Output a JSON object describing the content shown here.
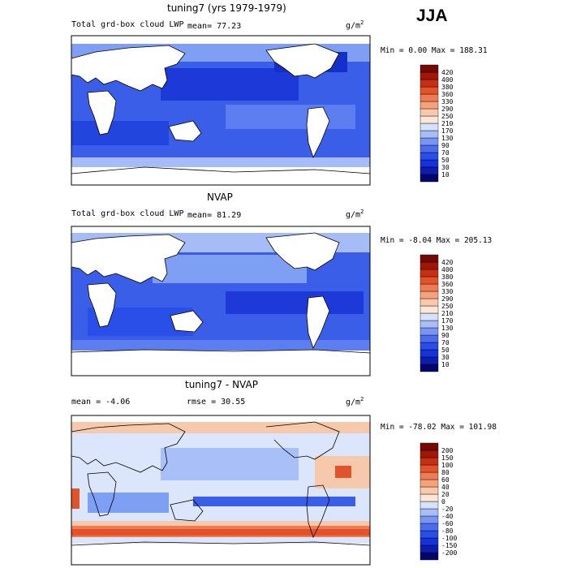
{
  "season": "JJA",
  "panels": [
    {
      "title": "tuning7 (yrs 1979-1979)",
      "field": "Total grd-box cloud LWP",
      "stat_left": "mean=  77.23",
      "units": "g/m",
      "units_exp": "2",
      "range": "Min =    0.00 Max = 188.31"
    },
    {
      "title": "NVAP",
      "field": "Total grd-box cloud LWP",
      "stat_left": "mean=  81.29",
      "units": "g/m",
      "units_exp": "2",
      "range": "Min =  -8.04 Max = 205.13"
    },
    {
      "title": "tuning7 - NVAP",
      "field": "mean =  -4.06",
      "stat_left": "rmse =  30.55",
      "units": "g/m",
      "units_exp": "2",
      "range": "Min = -78.02 Max = 101.98"
    }
  ],
  "chart_data": [
    {
      "type": "heatmap",
      "title": "tuning7 (yrs 1979-1979)",
      "variable": "Total grd-box cloud LWP",
      "mean": 77.23,
      "min": 0.0,
      "max": 188.31,
      "units": "g/m^2",
      "colorbar_levels": [
        10,
        30,
        50,
        70,
        90,
        130,
        170,
        210,
        250,
        290,
        330,
        360,
        380,
        400,
        420
      ],
      "colorbar_colors": [
        "#02066a",
        "#0c1db0",
        "#1533d8",
        "#2a4ee8",
        "#4c6cf0",
        "#7995f3",
        "#a7bdf7",
        "#d6e1fb",
        "#fbe6d7",
        "#f9c7a9",
        "#f5a27b",
        "#f07a52",
        "#e2532c",
        "#c72f12",
        "#a01708",
        "#740904"
      ]
    },
    {
      "type": "heatmap",
      "title": "NVAP",
      "variable": "Total grd-box cloud LWP",
      "mean": 81.29,
      "min": -8.04,
      "max": 205.13,
      "units": "g/m^2",
      "colorbar_levels": [
        10,
        30,
        50,
        70,
        90,
        130,
        170,
        210,
        250,
        290,
        330,
        360,
        380,
        400,
        420
      ],
      "colorbar_colors": [
        "#02066a",
        "#0c1db0",
        "#1533d8",
        "#2a4ee8",
        "#4c6cf0",
        "#7995f3",
        "#a7bdf7",
        "#d6e1fb",
        "#fbe6d7",
        "#f9c7a9",
        "#f5a27b",
        "#f07a52",
        "#e2532c",
        "#c72f12",
        "#a01708",
        "#740904"
      ]
    },
    {
      "type": "heatmap",
      "title": "tuning7 - NVAP",
      "mean": -4.06,
      "rmse": 30.55,
      "min": -78.02,
      "max": 101.98,
      "units": "g/m^2",
      "colorbar_levels": [
        -200,
        -150,
        -100,
        -80,
        -60,
        -40,
        -20,
        0,
        20,
        40,
        60,
        80,
        100,
        150,
        200
      ],
      "colorbar_colors": [
        "#02066a",
        "#0c1db0",
        "#1533d8",
        "#2a4ee8",
        "#4c6cf0",
        "#7995f3",
        "#a7bdf7",
        "#d6e1fb",
        "#fbe6d7",
        "#f9c7a9",
        "#f5a27b",
        "#f07a52",
        "#e2532c",
        "#c72f12",
        "#a01708",
        "#740904"
      ]
    }
  ]
}
